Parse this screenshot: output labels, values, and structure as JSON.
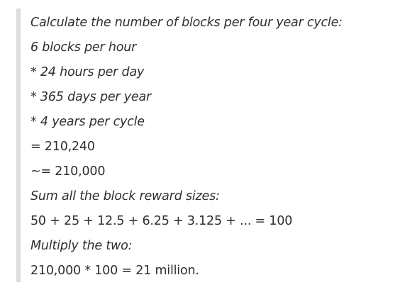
{
  "quote": {
    "lines": [
      {
        "text": "Calculate the number of blocks per four year cycle:",
        "italic": true
      },
      {
        "text": "6 blocks per hour",
        "italic": true
      },
      {
        "text": "* 24 hours per day",
        "italic": true
      },
      {
        "text": "* 365 days per year",
        "italic": true
      },
      {
        "text": "* 4 years per cycle",
        "italic": true
      },
      {
        "text": "= 210,240",
        "italic": false
      },
      {
        "text": "~= 210,000",
        "italic": false
      },
      {
        "text": "Sum all the block reward sizes:",
        "italic": true
      },
      {
        "text": "50 + 25 + 12.5 + 6.25 + 3.125 + ... = 100",
        "italic": false
      },
      {
        "text": "Multiply the two:",
        "italic": true
      },
      {
        "text": "210,000 * 100 = 21 million.",
        "italic": false
      }
    ]
  },
  "colors": {
    "text": "#2f2f2f",
    "quote_bar": "#dddddd",
    "background": "#ffffff"
  }
}
